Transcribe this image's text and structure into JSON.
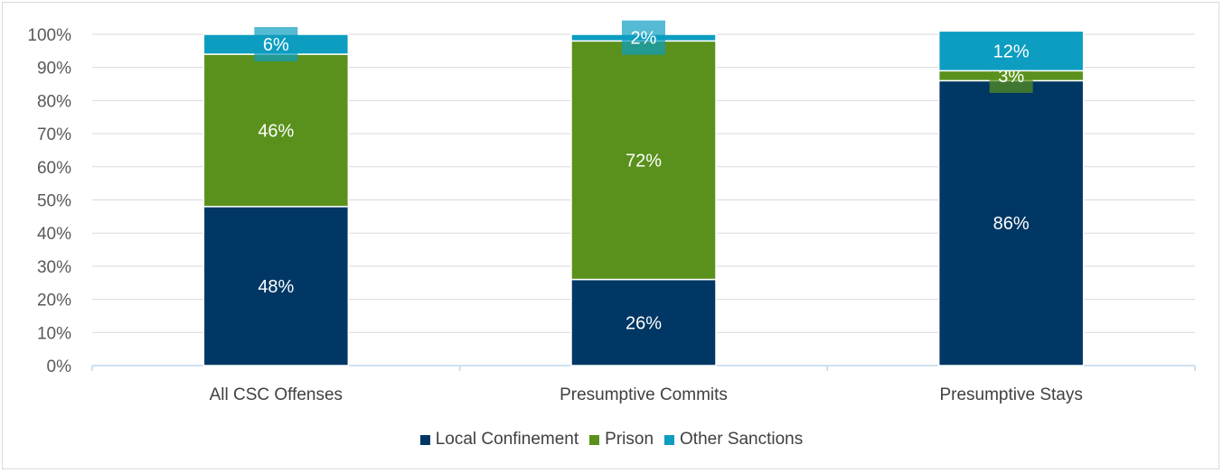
{
  "chart_data": {
    "type": "bar",
    "stacked": true,
    "categories": [
      "All CSC Offenses",
      "Presumptive Commits",
      "Presumptive Stays"
    ],
    "series": [
      {
        "name": "Local Confinement",
        "color": "#003764",
        "values": [
          48,
          26,
          86
        ]
      },
      {
        "name": "Prison",
        "color": "#5a911c",
        "values": [
          46,
          72,
          3
        ]
      },
      {
        "name": "Other Sanctions",
        "color": "#0d9dc0",
        "values": [
          6,
          2,
          12
        ]
      }
    ],
    "ylim": [
      0,
      100
    ],
    "yticks": [
      "0%",
      "10%",
      "20%",
      "30%",
      "40%",
      "50%",
      "60%",
      "70%",
      "80%",
      "90%",
      "100%"
    ],
    "grid": true,
    "legend": "bottom",
    "title": "",
    "xlabel": "",
    "ylabel": ""
  }
}
